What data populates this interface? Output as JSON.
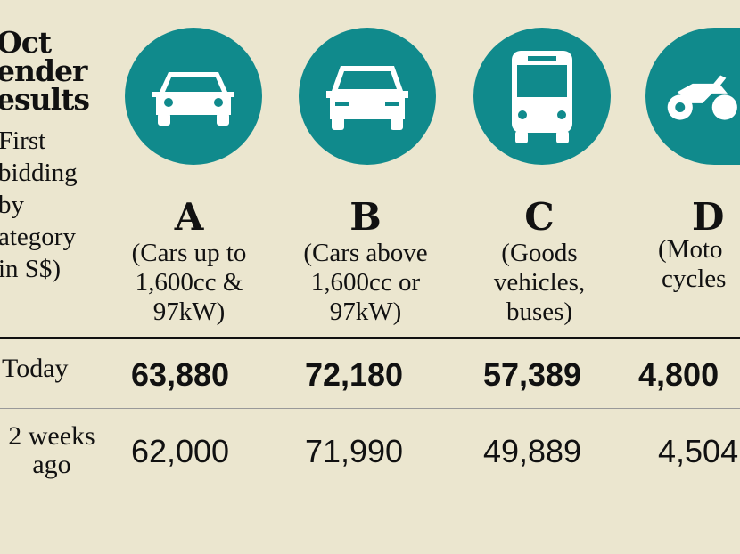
{
  "title": [
    "Oct",
    "ender",
    "esults"
  ],
  "subtitle": [
    "First",
    "bidding",
    "by",
    "ategory",
    "in S$)"
  ],
  "accent_color": "#108a8c",
  "categories": [
    {
      "letter": "A",
      "desc": [
        "(Cars up to",
        "1,600cc &",
        "97kW)"
      ],
      "icon": "car-icon"
    },
    {
      "letter": "B",
      "desc": [
        "(Cars above",
        "1,600cc or",
        "97kW)"
      ],
      "icon": "suv-icon"
    },
    {
      "letter": "C",
      "desc": [
        "(Goods",
        "vehicles,",
        "buses)"
      ],
      "icon": "bus-icon"
    },
    {
      "letter": "D",
      "desc": [
        "(Moto",
        "cycles"
      ],
      "icon": "quad-bike-icon"
    }
  ],
  "rows": [
    {
      "label": [
        "Today"
      ],
      "values": [
        "63,880",
        "72,180",
        "57,389",
        "4,800"
      ]
    },
    {
      "label": [
        "2 weeks",
        "ago"
      ],
      "values": [
        "62,000",
        "71,990",
        "49,889",
        "4,504"
      ]
    }
  ]
}
